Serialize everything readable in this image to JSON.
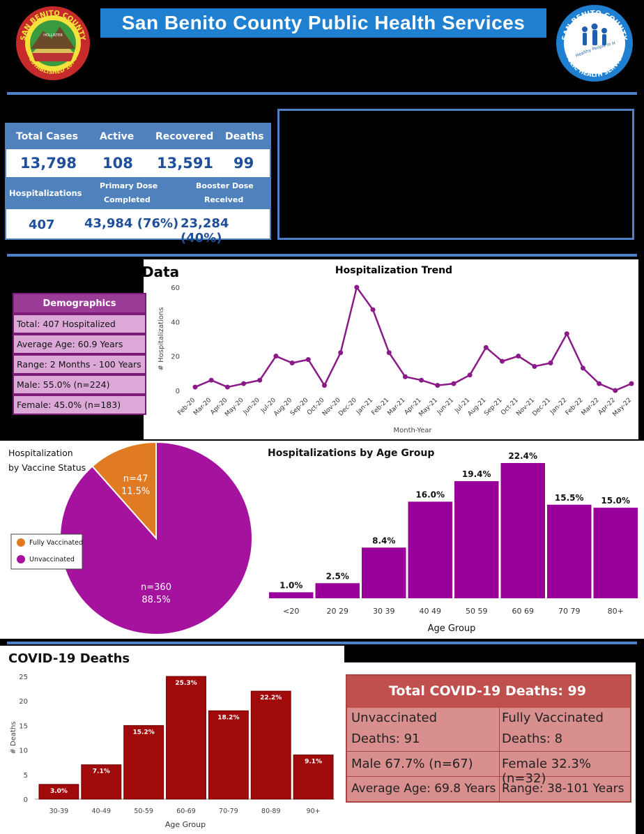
{
  "header": {
    "title": "San Benito County Public Health Services",
    "left_seal": {
      "arc_text": "SAN BENITO COUNTY",
      "bottom_text": "ESTABLISHED 1874",
      "town": "HOLLISTER"
    },
    "right_seal": {
      "arc_text": "SAN BENITO COUNTY",
      "slogan": "Healthy People in Healthy Communities",
      "bottom_text": "PUBLIC HEALTH SERVICES"
    }
  },
  "stats": {
    "total_cases_label": "Total Cases",
    "total_cases": "13,798",
    "active_label": "Active",
    "active": "108",
    "recovered_label": "Recovered",
    "recovered": "13,591",
    "deaths_label": "Deaths",
    "deaths": "99",
    "hospitalizations_label": "Hospitalizations",
    "hospitalizations": "407",
    "primary_label_1": "Primary Dose",
    "primary_label_2": "Completed",
    "primary": "43,984 (76%)",
    "booster_label_1": "Booster Dose",
    "booster_label_2": "Received",
    "booster": "23,284 (40%)"
  },
  "hosp_section": {
    "heading_fragment": "Data"
  },
  "demographics": {
    "title": "Demographics",
    "rows": [
      "Total: 407 Hospitalized",
      "Average Age: 60.9 Years",
      "Range: 2 Months - 100 Years",
      "Male: 55.0% (n=224)",
      "Female: 45.0% (n=183)"
    ]
  },
  "charts": [
    {
      "type": "line",
      "title": "Hospitalization Trend",
      "xlabel": "Month-Year",
      "ylabel": "# Hospitalizations",
      "ylim": [
        0,
        60
      ],
      "yticks": [
        0,
        20,
        40,
        60
      ],
      "categories": [
        "Feb-20",
        "Mar-20",
        "Apr-20",
        "May-20",
        "Jun-20",
        "Jul-20",
        "Aug-20",
        "Sep-20",
        "Oct-20",
        "Nov-20",
        "Dec-20",
        "Jan-21",
        "Feb-21",
        "Mar-21",
        "Apr-21",
        "May-21",
        "Jun-21",
        "Jul-21",
        "Aug-21",
        "Sep-21",
        "Oct-21",
        "Nov-21",
        "Dec-21",
        "Jan-22",
        "Feb-22",
        "Mar-22",
        "Apr-22",
        "May-22"
      ],
      "values": [
        2,
        6,
        2,
        4,
        6,
        20,
        16,
        18,
        3,
        22,
        60,
        47,
        22,
        8,
        6,
        3,
        4,
        9,
        25,
        17,
        20,
        14,
        16,
        33,
        13,
        4,
        0,
        4
      ],
      "color": "#8b1a89"
    },
    {
      "type": "pie",
      "title_line1": "Hospitalization",
      "title_line2": "by Vaccine Status",
      "slices": [
        {
          "name": "Fully Vaccinated",
          "value": 47,
          "percent": 11.5,
          "count_label": "n=47",
          "pct_label": "11.5%",
          "color": "#e07b24"
        },
        {
          "name": "Unvaccinated",
          "value": 360,
          "percent": 88.5,
          "count_label": "n=360",
          "pct_label": "88.5%",
          "color": "#a5129e"
        }
      ],
      "legend_position": "left"
    },
    {
      "type": "bar",
      "title": "Hospitalizations by Age Group",
      "xlabel": "Age Group",
      "categories": [
        "<20",
        "20 29",
        "30 39",
        "40 49",
        "50 59",
        "60 69",
        "70 79",
        "80+"
      ],
      "values": [
        1.0,
        2.5,
        8.4,
        16.0,
        19.4,
        22.4,
        15.5,
        15.0
      ],
      "labels": [
        "1.0%",
        "2.5%",
        "8.4%",
        "16.0%",
        "19.4%",
        "22.4%",
        "15.5%",
        "15.0%"
      ],
      "ylim": [
        0,
        22.4
      ],
      "color": "#980099"
    },
    {
      "type": "bar",
      "title": "COVID-19 Deaths",
      "xlabel": "Age Group",
      "ylabel": "# Deaths",
      "categories": [
        "30-39",
        "40-49",
        "50-59",
        "60-69",
        "70-79",
        "80-89",
        "90+"
      ],
      "values": [
        3,
        7,
        15,
        25,
        18,
        22,
        9
      ],
      "labels": [
        "3.0%",
        "7.1%",
        "15.2%",
        "25.3%",
        "18.2%",
        "22.2%",
        "9.1%"
      ],
      "ylim": [
        0,
        25
      ],
      "yticks": [
        0,
        5,
        10,
        15,
        20,
        25
      ],
      "color": "#a10a0a"
    }
  ],
  "deaths_table": {
    "title": "Total COVID-19  Deaths: 99",
    "unvax_label": "Unvaccinated",
    "unvax_value": "Deaths: 91",
    "vax_label": "Fully Vaccinated",
    "vax_value": "Deaths: 8",
    "male": "Male 67.7% (n=67)",
    "female": "Female 32.3% (n=32)",
    "avg_age": "Average Age: 69.8 Years",
    "range": "Range: 38-101 Years"
  }
}
